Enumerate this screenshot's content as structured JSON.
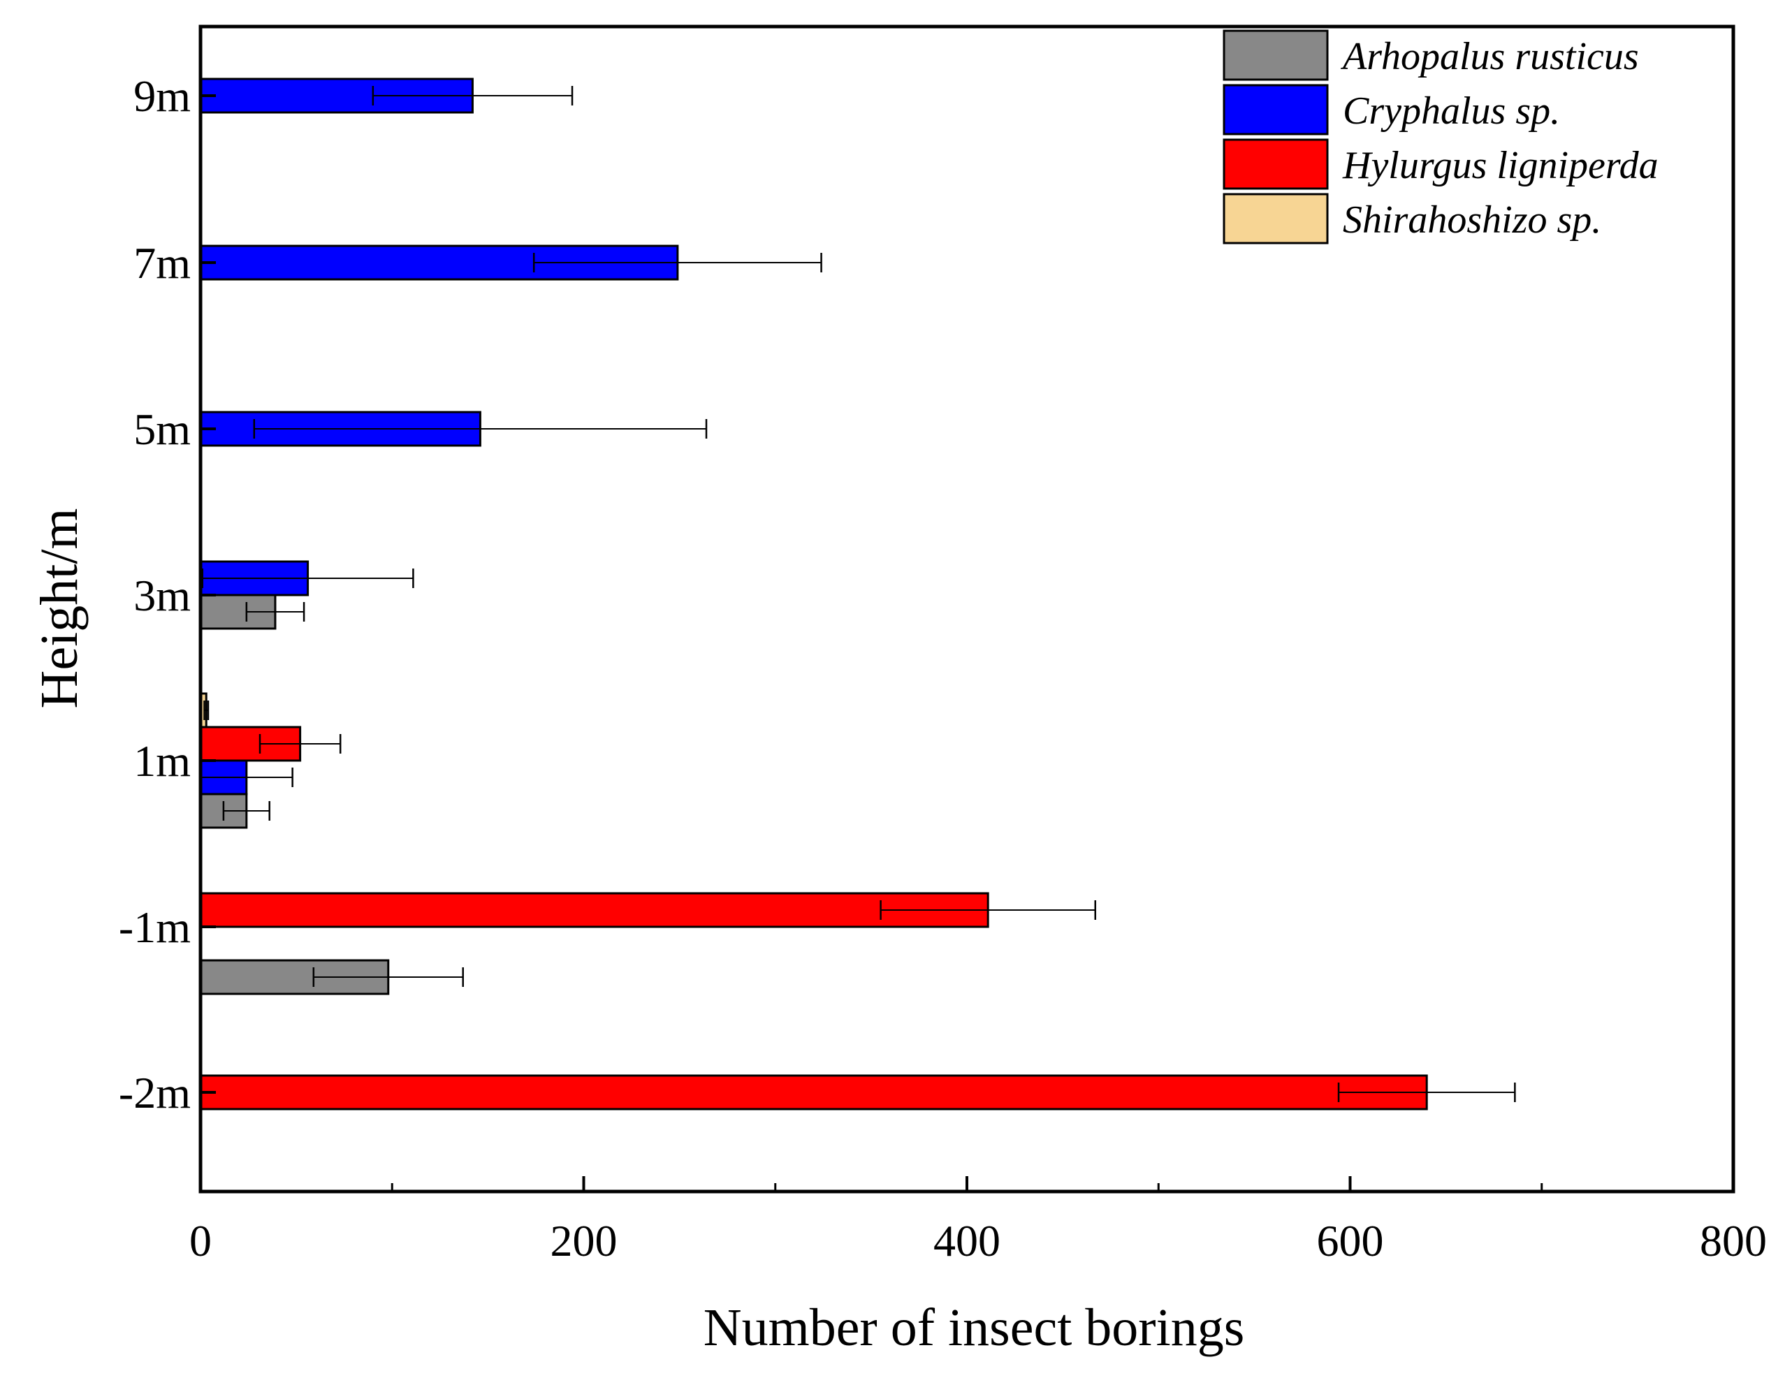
{
  "chart_data": {
    "type": "bar",
    "orientation": "horizontal",
    "xlabel": "Number of insect borings",
    "ylabel": "Height/m",
    "xlim": [
      0,
      800
    ],
    "x_ticks": [
      "0",
      "200",
      "400",
      "600",
      "800"
    ],
    "categories": [
      "-2m",
      "-1m",
      "1m",
      "3m",
      "5m",
      "7m",
      "9m"
    ],
    "series": [
      {
        "name": "Arhopalus rusticus",
        "color": "#888888",
        "values": [
          null,
          98,
          24,
          39,
          null,
          null,
          null
        ],
        "errors": [
          null,
          39,
          12,
          15,
          null,
          null,
          null
        ]
      },
      {
        "name": "Cryphalus sp.",
        "color": "#0000ff",
        "values": [
          null,
          null,
          24,
          56,
          146,
          249,
          142
        ],
        "errors": [
          null,
          null,
          24,
          55,
          118,
          75,
          52
        ]
      },
      {
        "name": "Hylurgus ligniperda",
        "color": "#ff0000",
        "values": [
          640,
          411,
          52,
          null,
          null,
          null,
          null
        ],
        "errors": [
          46,
          56,
          21,
          null,
          null,
          null,
          null
        ]
      },
      {
        "name": "Shirahoshizo sp.",
        "color": "#f7d594",
        "values": [
          null,
          null,
          3,
          null,
          null,
          null,
          null
        ],
        "errors": [
          null,
          null,
          1,
          null,
          null,
          null,
          null
        ]
      }
    ],
    "legend_position": "top-right",
    "grid": false
  }
}
